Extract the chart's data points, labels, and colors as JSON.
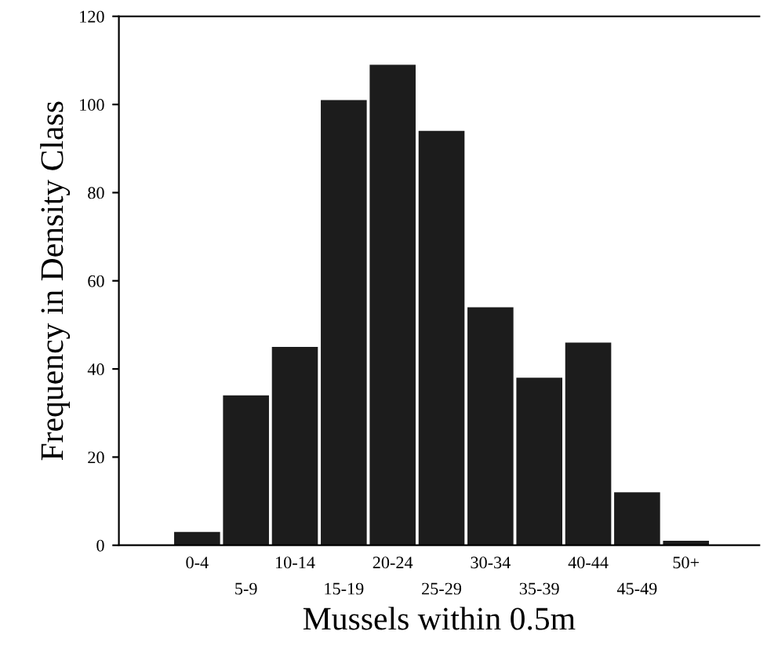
{
  "chart_data": {
    "type": "bar",
    "xlabel": "Mussels within 0.5m",
    "ylabel": "Frequency in Density Class",
    "categories": [
      "0-4",
      "5-9",
      "10-14",
      "15-19",
      "20-24",
      "25-29",
      "30-34",
      "35-39",
      "40-44",
      "45-49",
      "50+"
    ],
    "values": [
      3,
      34,
      45,
      101,
      109,
      94,
      54,
      38,
      46,
      12,
      1
    ],
    "color": "#1c1c1c",
    "ylim": [
      0,
      120
    ],
    "yticks": [
      0,
      20,
      40,
      60,
      80,
      100,
      120
    ],
    "grid": false,
    "legend": false
  }
}
